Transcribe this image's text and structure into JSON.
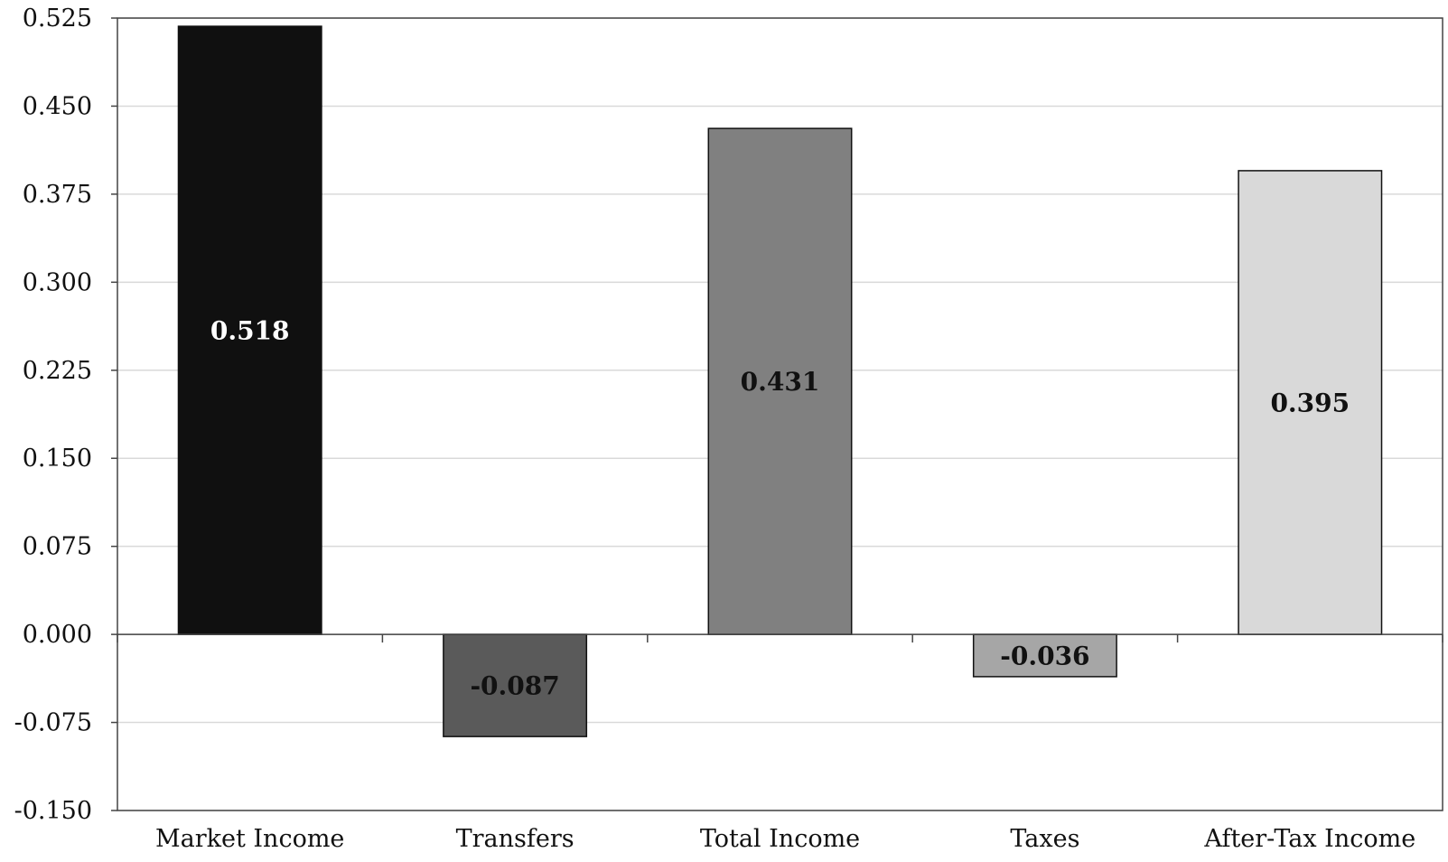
{
  "chart_data": {
    "type": "bar",
    "title": "",
    "xlabel": "",
    "ylabel": "",
    "categories": [
      "Market Income",
      "Transfers",
      "Total Income",
      "Taxes",
      "After-Tax Income"
    ],
    "values": [
      0.518,
      -0.087,
      0.431,
      -0.036,
      0.395
    ],
    "data_labels": [
      "0.518",
      "-0.087",
      "0.431",
      "-0.036",
      "0.395"
    ],
    "bar_colors": [
      "#101010",
      "#5a5a5a",
      "#808080",
      "#a6a6a6",
      "#d9d9d9"
    ],
    "label_colors": [
      "#ffffff",
      "#111111",
      "#111111",
      "#111111",
      "#111111"
    ],
    "ylim": [
      -0.15,
      0.525
    ],
    "yticks": [
      0.525,
      0.45,
      0.375,
      0.3,
      0.225,
      0.15,
      0.075,
      0.0,
      -0.075,
      -0.15
    ],
    "ytick_labels": [
      "0.525",
      "0.450",
      "0.375",
      "0.300",
      "0.225",
      "0.150",
      "0.075",
      "0.000",
      "-0.075",
      "-0.150"
    ],
    "grid": true,
    "legend": "none"
  }
}
